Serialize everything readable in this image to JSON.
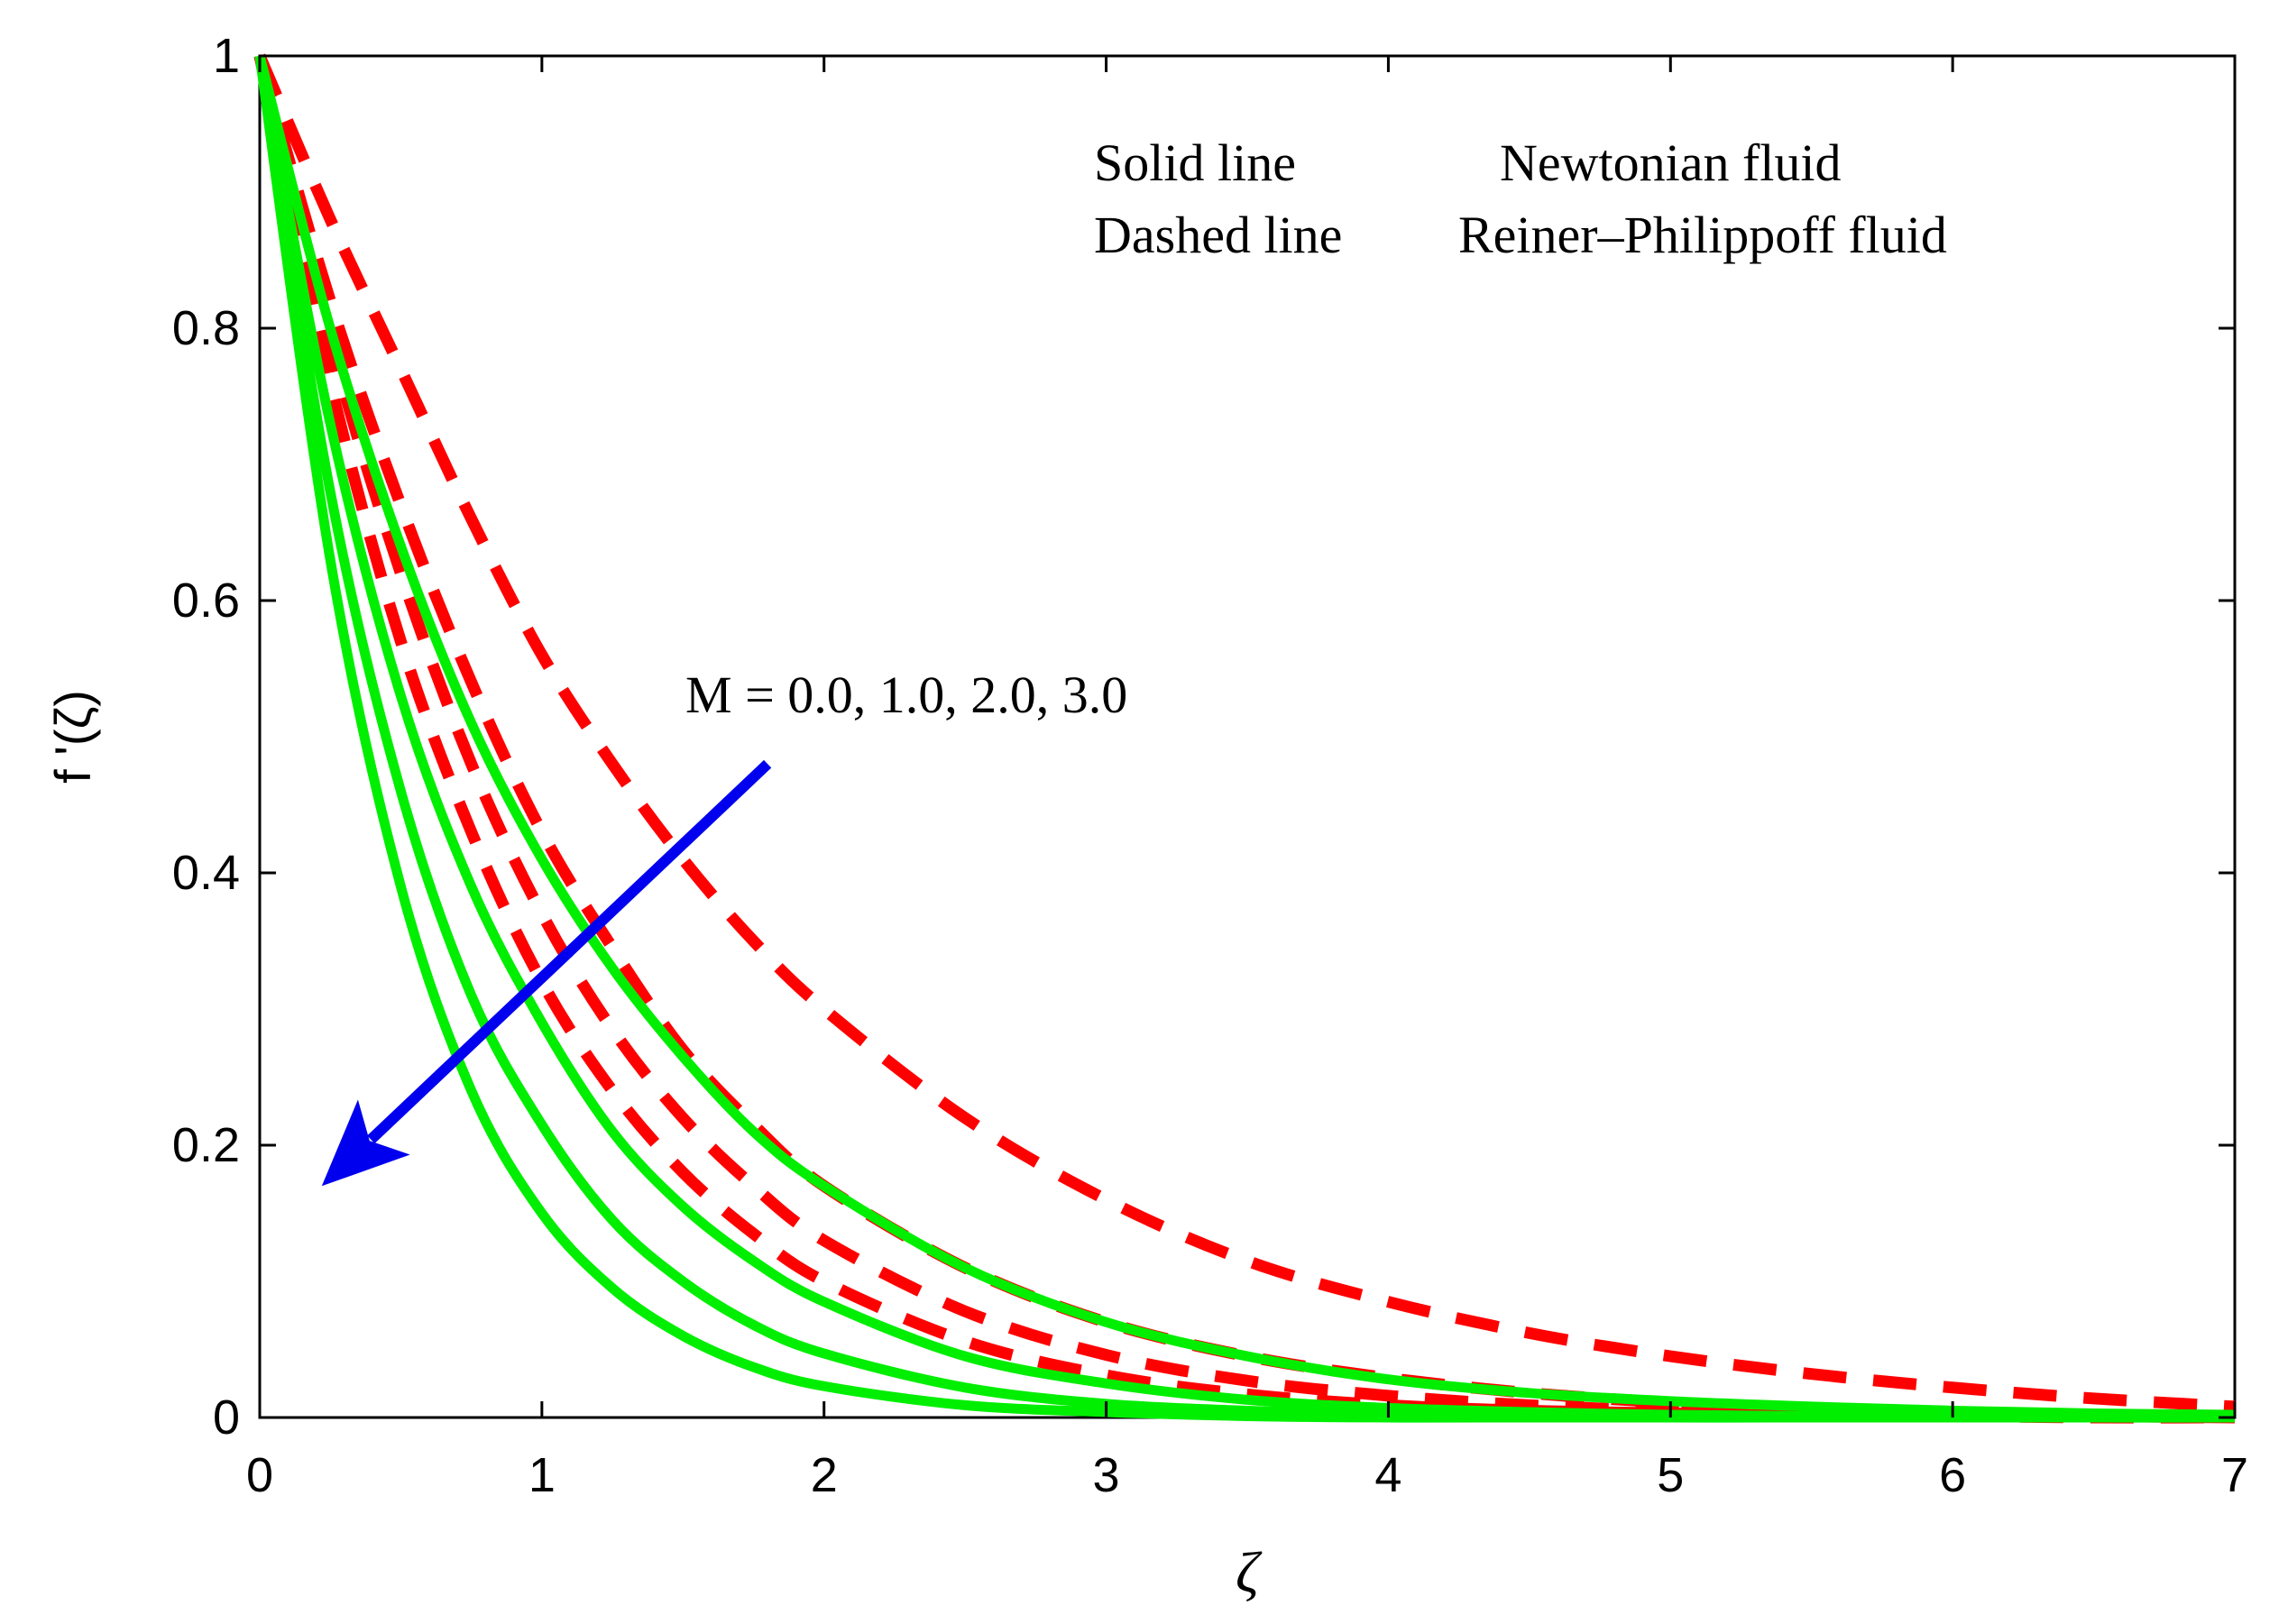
{
  "chart_data": {
    "type": "line",
    "title": "",
    "xlabel": "ζ",
    "ylabel": "f '(ζ)",
    "xlim": [
      0,
      7
    ],
    "ylim": [
      0,
      1
    ],
    "xticks": [
      0,
      1,
      2,
      3,
      4,
      5,
      6,
      7
    ],
    "yticks": [
      0,
      0.2,
      0.4,
      0.6,
      0.8,
      1
    ],
    "xtick_labels": [
      "0",
      "1",
      "2",
      "3",
      "4",
      "5",
      "6",
      "7"
    ],
    "ytick_labels": [
      "0",
      "0.2",
      "0.4",
      "0.6",
      "0.8",
      "1"
    ],
    "grid": false,
    "legend_text": {
      "solid_label": "Solid line",
      "solid_desc": "Newtonian fluid",
      "dashed_label": "Dashed line",
      "dashed_desc": "Reiner–Philippoff fluid"
    },
    "annotation": {
      "text": "M = 0.0, 1.0, 2.0, 3.0",
      "arrow_from": [
        1.8,
        0.48
      ],
      "arrow_to": [
        0.22,
        0.17
      ]
    },
    "colors": {
      "newtonian": "#00ee00",
      "reiner": "#ff0000",
      "arrow": "#0000ee",
      "axes": "#000000"
    },
    "series": [
      {
        "name": "Newtonian M=0.0",
        "style": "solid",
        "x": [
          0,
          0.25,
          0.5,
          0.75,
          1,
          1.25,
          1.5,
          1.75,
          2,
          2.5,
          3,
          3.5,
          4,
          4.5,
          5,
          5.5,
          6,
          6.5,
          7
        ],
        "values": [
          1,
          0.8,
          0.64,
          0.51,
          0.41,
          0.33,
          0.265,
          0.21,
          0.17,
          0.11,
          0.07,
          0.045,
          0.028,
          0.018,
          0.012,
          0.008,
          0.005,
          0.003,
          0.002
        ]
      },
      {
        "name": "Newtonian M=1.0",
        "style": "solid",
        "x": [
          0,
          0.25,
          0.5,
          0.75,
          1,
          1.25,
          1.5,
          1.75,
          2,
          2.5,
          3,
          3.5,
          4,
          4.5,
          5,
          5.5,
          6,
          6.5,
          7
        ],
        "values": [
          1,
          0.73,
          0.53,
          0.39,
          0.29,
          0.21,
          0.155,
          0.115,
          0.085,
          0.045,
          0.025,
          0.013,
          0.007,
          0.004,
          0.002,
          0.001,
          0.001,
          0,
          0
        ]
      },
      {
        "name": "Newtonian M=2.0",
        "style": "solid",
        "x": [
          0,
          0.25,
          0.5,
          0.75,
          1,
          1.25,
          1.5,
          1.75,
          2,
          2.5,
          3,
          3.5,
          4,
          4.5,
          5,
          5.5,
          6,
          6.5,
          7
        ],
        "values": [
          1,
          0.68,
          0.46,
          0.31,
          0.215,
          0.145,
          0.1,
          0.068,
          0.047,
          0.022,
          0.01,
          0.005,
          0.002,
          0.001,
          0,
          0,
          0,
          0,
          0
        ]
      },
      {
        "name": "Newtonian M=3.0",
        "style": "solid",
        "x": [
          0,
          0.25,
          0.5,
          0.75,
          1,
          1.25,
          1.5,
          1.75,
          2,
          2.5,
          3,
          3.5,
          4,
          4.5,
          5,
          5.5,
          6,
          6.5,
          7
        ],
        "values": [
          1,
          0.63,
          0.39,
          0.24,
          0.15,
          0.095,
          0.06,
          0.037,
          0.023,
          0.009,
          0.004,
          0.001,
          0,
          0,
          0,
          0,
          0,
          0,
          0
        ]
      },
      {
        "name": "Reiner-Philippoff M=0.0",
        "style": "dashed",
        "x": [
          0,
          0.25,
          0.5,
          0.75,
          1,
          1.25,
          1.5,
          1.75,
          2,
          2.5,
          3,
          3.5,
          4,
          4.5,
          5,
          5.5,
          6,
          6.5,
          7
        ],
        "values": [
          1,
          0.88,
          0.77,
          0.66,
          0.56,
          0.48,
          0.41,
          0.35,
          0.3,
          0.22,
          0.16,
          0.115,
          0.085,
          0.062,
          0.045,
          0.032,
          0.022,
          0.014,
          0.008
        ]
      },
      {
        "name": "Reiner-Philippoff M=1.0",
        "style": "dashed",
        "x": [
          0,
          0.25,
          0.5,
          0.75,
          1,
          1.25,
          1.5,
          1.75,
          2,
          2.5,
          3,
          3.5,
          4,
          4.5,
          5,
          5.5,
          6,
          6.5,
          7
        ],
        "values": [
          1,
          0.82,
          0.67,
          0.54,
          0.43,
          0.345,
          0.27,
          0.215,
          0.17,
          0.11,
          0.07,
          0.045,
          0.029,
          0.018,
          0.011,
          0.007,
          0.004,
          0.002,
          0.001
        ]
      },
      {
        "name": "Reiner-Philippoff M=2.0",
        "style": "dashed",
        "x": [
          0,
          0.25,
          0.5,
          0.75,
          1,
          1.25,
          1.5,
          1.75,
          2,
          2.5,
          3,
          3.5,
          4,
          4.5,
          5,
          5.5,
          6,
          6.5,
          7
        ],
        "values": [
          1,
          0.79,
          0.62,
          0.48,
          0.37,
          0.285,
          0.22,
          0.17,
          0.13,
          0.078,
          0.046,
          0.027,
          0.016,
          0.009,
          0.005,
          0.003,
          0.002,
          0.001,
          0
        ]
      },
      {
        "name": "Reiner-Philippoff M=3.0",
        "style": "dashed",
        "x": [
          0,
          0.25,
          0.5,
          0.75,
          1,
          1.25,
          1.5,
          1.75,
          2,
          2.5,
          3,
          3.5,
          4,
          4.5,
          5,
          5.5,
          6,
          6.5,
          7
        ],
        "values": [
          1,
          0.76,
          0.57,
          0.43,
          0.32,
          0.24,
          0.18,
          0.135,
          0.1,
          0.056,
          0.031,
          0.017,
          0.009,
          0.005,
          0.003,
          0.001,
          0.001,
          0,
          0
        ]
      }
    ]
  }
}
